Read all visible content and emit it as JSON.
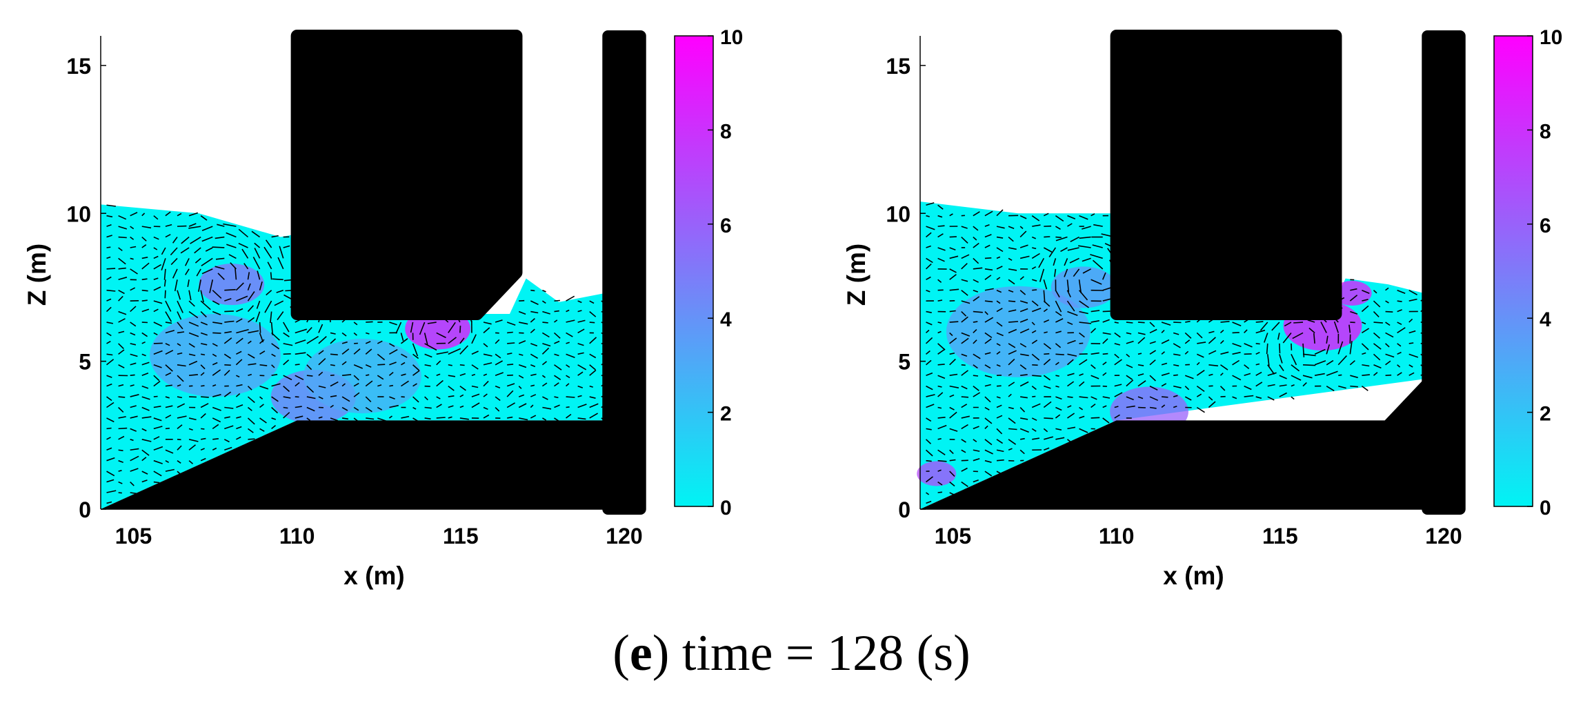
{
  "caption": {
    "open": "(",
    "letter": "e",
    "rest": ") time = 128 (s)"
  },
  "colors": {
    "cmin": "#00f4f4",
    "cmax": "#ff00ff",
    "solid": "#000000",
    "arrow": "#000000"
  },
  "chart_data": [
    {
      "type": "scatter",
      "title": "",
      "xlabel": "x (m)",
      "ylabel": "Z (m)",
      "xlim": [
        104,
        120
      ],
      "ylim": [
        0,
        16
      ],
      "xticks": [
        "105",
        "110",
        "115",
        "120"
      ],
      "yticks": [
        "0",
        "5",
        "10",
        "15"
      ],
      "colorbar": {
        "min": 0,
        "max": 10,
        "ticks": [
          "0",
          "2",
          "4",
          "6",
          "8",
          "10"
        ]
      },
      "solids": {
        "lower_ramp": [
          [
            104,
            0
          ],
          [
            110,
            3
          ],
          [
            120,
            3
          ],
          [
            120,
            0
          ]
        ],
        "overhang_block": [
          [
            110,
            16
          ],
          [
            116.7,
            16
          ],
          [
            116.7,
            8
          ],
          [
            115.5,
            6.6
          ],
          [
            110,
            6.6
          ]
        ],
        "right_wall": [
          [
            119.5,
            16
          ],
          [
            120.5,
            16
          ],
          [
            120.5,
            0
          ],
          [
            119.5,
            0
          ]
        ]
      },
      "free_surface": [
        [
          104,
          10.3
        ],
        [
          107,
          10
        ],
        [
          109.5,
          9.2
        ],
        [
          110,
          9.3
        ],
        [
          110,
          6.6
        ],
        [
          116.5,
          6.6
        ],
        [
          117,
          7.8
        ],
        [
          118,
          7
        ],
        [
          119.4,
          7.3
        ],
        [
          119.4,
          3
        ]
      ],
      "hotspots": [
        {
          "x": 108,
          "y": 7.6,
          "r": 1.0,
          "value": 5.5
        },
        {
          "x": 114.3,
          "y": 6.1,
          "r": 1.0,
          "value": 9.5
        },
        {
          "x": 110.5,
          "y": 3.8,
          "r": 1.3,
          "value": 5
        },
        {
          "x": 107.5,
          "y": 5.2,
          "r": 2.0,
          "value": 3.5
        },
        {
          "x": 112,
          "y": 4.5,
          "r": 1.8,
          "value": 3
        }
      ],
      "vortices": [
        {
          "x": 107.7,
          "y": 7.7,
          "r": 1.6
        },
        {
          "x": 109.8,
          "y": 6.5,
          "r": 1.0
        },
        {
          "x": 114.3,
          "y": 6.1,
          "r": 0.9
        }
      ]
    },
    {
      "type": "scatter",
      "title": "",
      "xlabel": "x (m)",
      "ylabel": "Z (m)",
      "xlim": [
        104,
        120
      ],
      "ylim": [
        0,
        16
      ],
      "xticks": [
        "105",
        "110",
        "115",
        "120"
      ],
      "yticks": [
        "0",
        "5",
        "10",
        "15"
      ],
      "colorbar": {
        "min": 0,
        "max": 10,
        "ticks": [
          "0",
          "2",
          "4",
          "6",
          "8",
          "10"
        ]
      },
      "solids": {
        "lower_ramp": [
          [
            104,
            0
          ],
          [
            110,
            3
          ],
          [
            118.2,
            3
          ],
          [
            119.4,
            4.4
          ],
          [
            120,
            4.4
          ],
          [
            120,
            0
          ]
        ],
        "overhang_block": [
          [
            110,
            16
          ],
          [
            116.7,
            16
          ],
          [
            116.7,
            6.6
          ],
          [
            110,
            6.6
          ]
        ],
        "right_wall": [
          [
            119.5,
            16
          ],
          [
            120.5,
            16
          ],
          [
            120.5,
            0
          ],
          [
            119.5,
            0
          ]
        ]
      },
      "free_surface": [
        [
          104,
          10.4
        ],
        [
          107,
          10
        ],
        [
          110,
          10
        ],
        [
          110,
          6.6
        ],
        [
          116.5,
          6.6
        ],
        [
          117,
          7.8
        ],
        [
          118.3,
          7.6
        ],
        [
          119.4,
          7.3
        ],
        [
          119.4,
          4.4
        ]
      ],
      "hotspots": [
        {
          "x": 116.3,
          "y": 6.2,
          "r": 1.2,
          "value": 9.5
        },
        {
          "x": 117.2,
          "y": 7.3,
          "r": 0.6,
          "value": 9
        },
        {
          "x": 111,
          "y": 3.3,
          "r": 1.2,
          "value": 6
        },
        {
          "x": 107,
          "y": 6,
          "r": 2.2,
          "value": 3.5
        },
        {
          "x": 109,
          "y": 7.5,
          "r": 1.0,
          "value": 4
        },
        {
          "x": 104.5,
          "y": 1.2,
          "r": 0.6,
          "value": 7
        }
      ],
      "vortices": [
        {
          "x": 109.3,
          "y": 7.9,
          "r": 1.3
        },
        {
          "x": 115.8,
          "y": 5.6,
          "r": 1.1
        }
      ]
    }
  ]
}
